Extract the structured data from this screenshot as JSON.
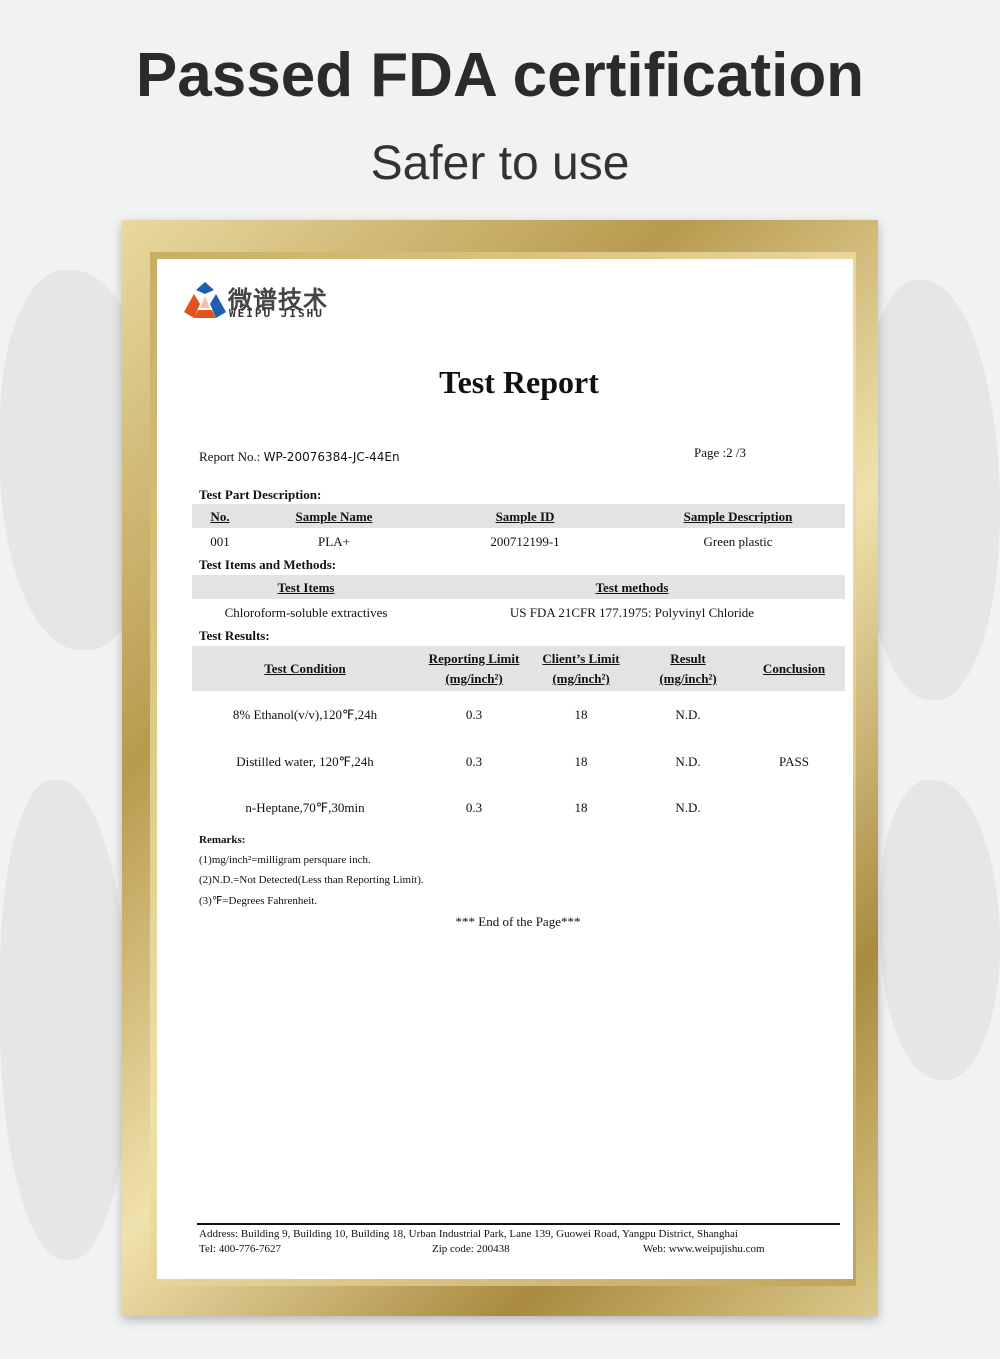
{
  "heading": "Passed FDA certification",
  "subheading": "Safer to use",
  "logo": {
    "cn": "微谱技术",
    "en": "WEIPU JISHU"
  },
  "title": "Test Report",
  "report_no_label": "Report No.:",
  "report_no": "WP-20076384-JC-44En",
  "page": "Page :2 /3",
  "part_desc": {
    "label": "Test Part Description:",
    "headers": [
      "No.",
      "Sample Name",
      "Sample ID",
      "Sample Description"
    ],
    "row": [
      "001",
      "PLA+",
      "200712199-1",
      "Green plastic"
    ]
  },
  "items": {
    "label": "Test Items and Methods:",
    "headers": [
      "Test Items",
      "Test methods"
    ],
    "row": [
      "Chloroform-soluble extractives",
      "US FDA 21CFR 177.1975: Polyvinyl Chloride"
    ]
  },
  "results": {
    "label": "Test Results:",
    "headers": [
      "Test Condition",
      "Reporting Limit",
      "Client’s Limit",
      "Result",
      "Conclusion"
    ],
    "unit": "(mg/inch²)",
    "rows": [
      [
        "8% Ethanol(v/v),120℉,24h",
        "0.3",
        "18",
        "N.D."
      ],
      [
        "Distilled water, 120℉,24h",
        "0.3",
        "18",
        "N.D."
      ],
      [
        "n-Heptane,70℉,30min",
        "0.3",
        "18",
        "N.D."
      ]
    ],
    "conclusion": "PASS"
  },
  "remarks": {
    "label": "Remarks:",
    "lines": [
      "(1)mg/inch²=milligram persquare inch.",
      "(2)N.D.=Not Detected(Less than Reporting Limit).",
      "(3)℉=Degrees Fahrenheit."
    ]
  },
  "end": "*** End of the Page***",
  "footer": {
    "address": "Address:  Building 9, Building 10, Building 18, Urban Industrial Park, Lane 139, Guowei Road, Yangpu District, Shanghai",
    "tel": "Tel:  400-776-7627",
    "zip": "Zip code:  200438",
    "web": "Web:  www.weipujishu.com"
  }
}
